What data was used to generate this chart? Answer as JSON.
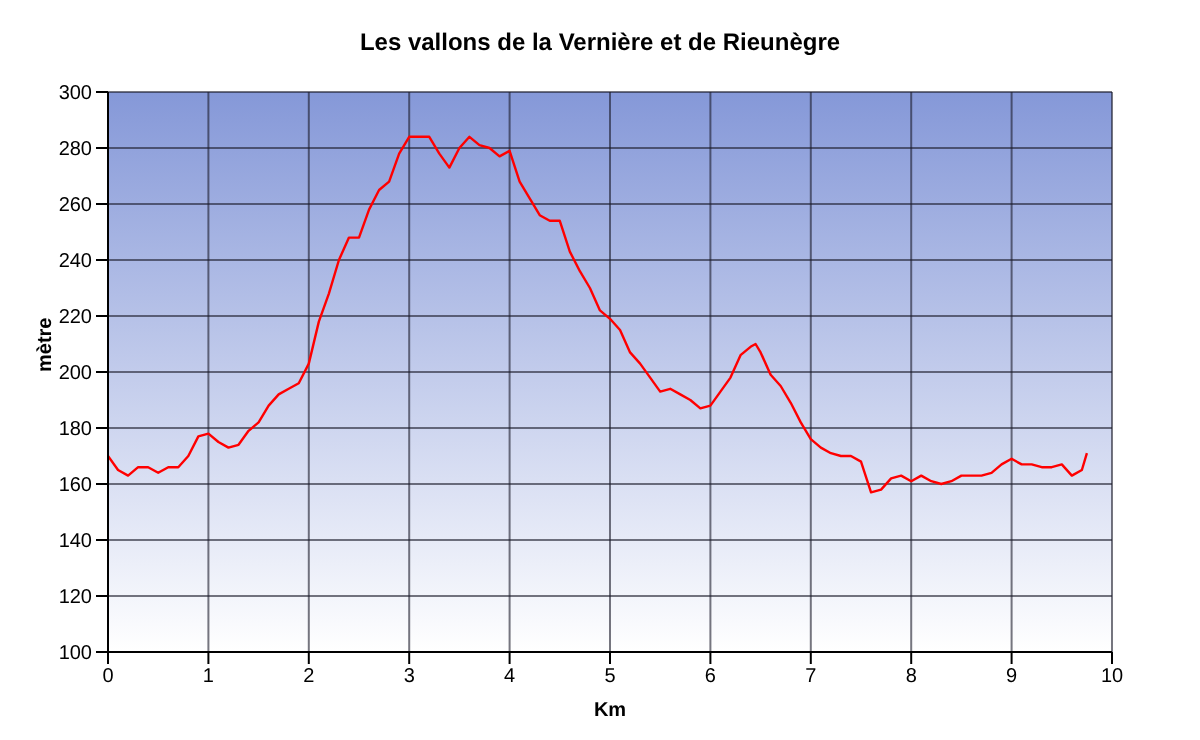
{
  "chart_data": {
    "type": "line",
    "title": "Les vallons de la Vernière et de Rieunègre",
    "xlabel": "Km",
    "ylabel": "mètre",
    "x": [
      0,
      0.1,
      0.2,
      0.3,
      0.4,
      0.5,
      0.6,
      0.7,
      0.8,
      0.9,
      1.0,
      1.1,
      1.2,
      1.3,
      1.4,
      1.5,
      1.6,
      1.7,
      1.8,
      1.9,
      2.0,
      2.1,
      2.2,
      2.3,
      2.4,
      2.5,
      2.6,
      2.7,
      2.8,
      2.9,
      3.0,
      3.1,
      3.2,
      3.3,
      3.4,
      3.5,
      3.6,
      3.7,
      3.8,
      3.9,
      4.0,
      4.1,
      4.2,
      4.3,
      4.4,
      4.5,
      4.6,
      4.7,
      4.8,
      4.9,
      5.0,
      5.1,
      5.2,
      5.3,
      5.4,
      5.5,
      5.6,
      5.7,
      5.8,
      5.9,
      6.0,
      6.1,
      6.2,
      6.3,
      6.4,
      6.45,
      6.5,
      6.6,
      6.7,
      6.8,
      6.9,
      7.0,
      7.1,
      7.2,
      7.3,
      7.4,
      7.5,
      7.6,
      7.7,
      7.8,
      7.9,
      8.0,
      8.1,
      8.2,
      8.3,
      8.4,
      8.5,
      8.6,
      8.7,
      8.8,
      8.9,
      9.0,
      9.1,
      9.2,
      9.3,
      9.4,
      9.5,
      9.6,
      9.7,
      9.75
    ],
    "series": [
      {
        "color": "#ff0000",
        "values": [
          170,
          165,
          163,
          166,
          166,
          164,
          166,
          166,
          170,
          177,
          178,
          175,
          173,
          174,
          179,
          182,
          188,
          192,
          194,
          196,
          203,
          218,
          228,
          240,
          248,
          248,
          258,
          265,
          268,
          278,
          284,
          284,
          284,
          278,
          273,
          280,
          284,
          281,
          280,
          277,
          279,
          268,
          262,
          256,
          254,
          254,
          243,
          236,
          230,
          222,
          219,
          215,
          207,
          203,
          198,
          193,
          194,
          192,
          190,
          187,
          188,
          193,
          198,
          206,
          209,
          210,
          207,
          199,
          195,
          189,
          182,
          176,
          173,
          171,
          170,
          170,
          168,
          157,
          158,
          162,
          163,
          161,
          163,
          161,
          160,
          161,
          163,
          163,
          163,
          164,
          167,
          169,
          167,
          167,
          166,
          166,
          167,
          163,
          165,
          171
        ]
      }
    ],
    "xlim": [
      0,
      10
    ],
    "xticks": [
      0,
      1,
      2,
      3,
      4,
      5,
      6,
      7,
      8,
      9,
      10
    ],
    "ylim": [
      100,
      300
    ],
    "yticks": [
      100,
      120,
      140,
      160,
      180,
      200,
      220,
      240,
      260,
      280,
      300
    ],
    "grid": true,
    "legend": false,
    "marker": "none",
    "line_style": "solid"
  }
}
